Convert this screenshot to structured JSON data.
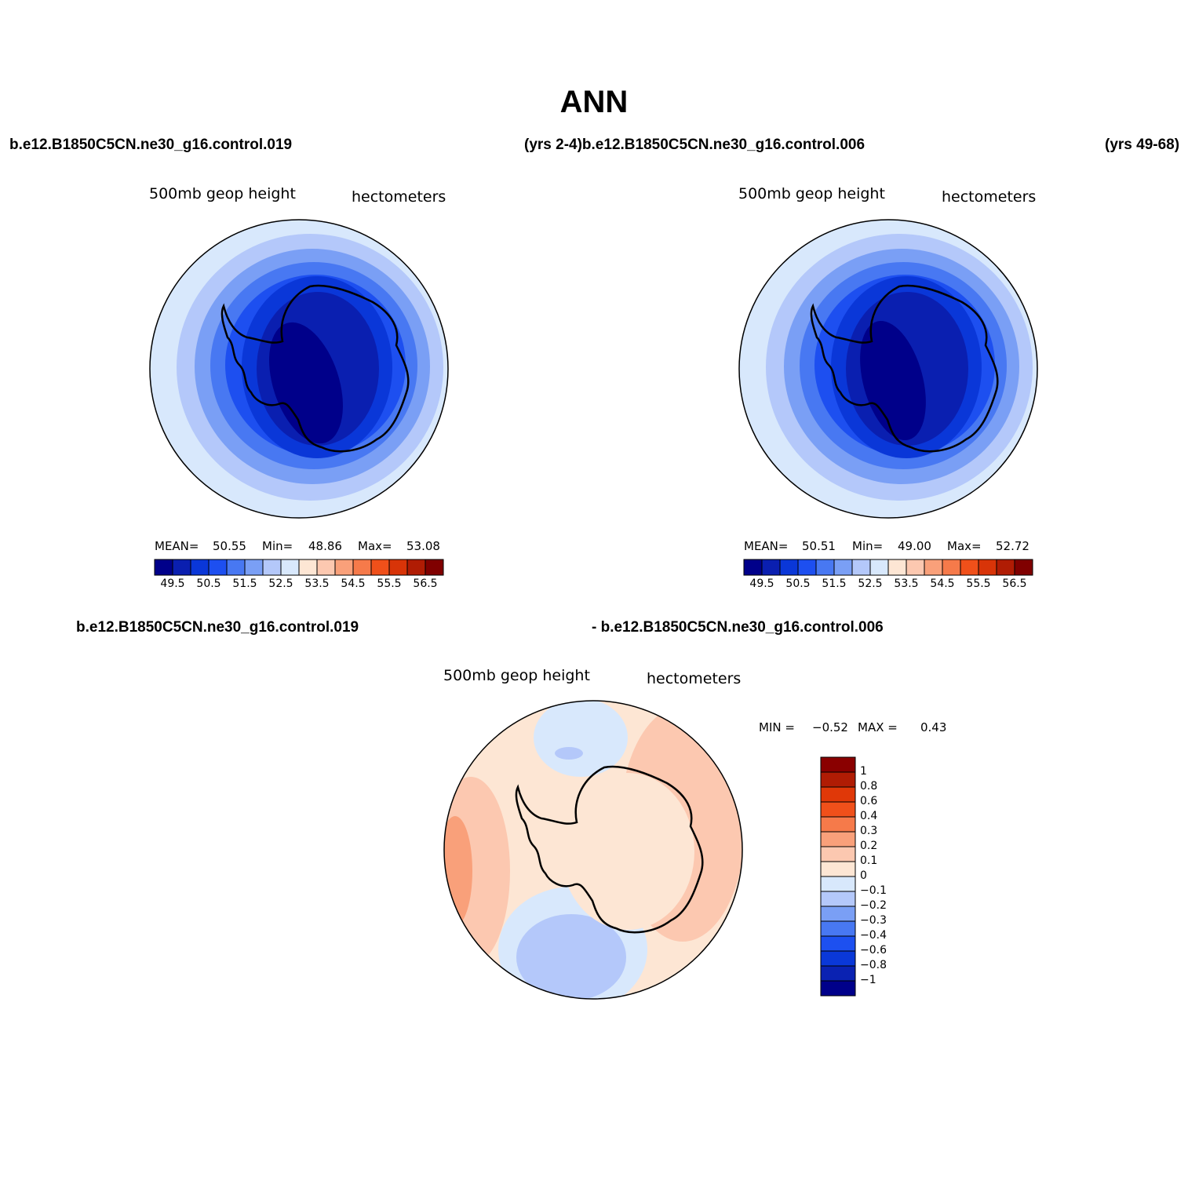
{
  "main_title": "ANN",
  "header": {
    "left_case": "b.e12.B1850C5CN.ne30_g16.control.019",
    "mid_label": "(yrs 2-4)b.e12.B1850C5CN.ne30_g16.control.006",
    "right_label": "(yrs 49-68)"
  },
  "diff_header": {
    "left": "b.e12.B1850C5CN.ne30_g16.control.019",
    "right": "- b.e12.B1850C5CN.ne30_g16.control.006"
  },
  "panels": [
    {
      "variable": "500mb geop height",
      "units": "hectometers",
      "stats": {
        "mean_label": "MEAN=",
        "mean": "50.55",
        "min_label": "Min=",
        "min": "48.86",
        "max_label": "Max=",
        "max": "53.08"
      }
    },
    {
      "variable": "500mb geop height",
      "units": "hectometers",
      "stats": {
        "mean_label": "MEAN=",
        "mean": "50.51",
        "min_label": "Min=",
        "min": "49.00",
        "max_label": "Max=",
        "max": "52.72"
      }
    },
    {
      "variable": "500mb geop height",
      "units": "hectometers",
      "stats": {
        "min_label": "MIN =",
        "min": "−0.52",
        "max_label": "MAX =",
        "max": "0.43"
      }
    }
  ],
  "colorbar_abs": {
    "colors": [
      "#00008a",
      "#0a1fb0",
      "#0a37d8",
      "#1d4ff0",
      "#4878f2",
      "#7a9ff5",
      "#b4c8fa",
      "#d8e8fc",
      "#fde6d4",
      "#fcc8b0",
      "#f9a07a",
      "#f67a4a",
      "#f0501a",
      "#d83408",
      "#b01c04",
      "#800000"
    ],
    "tick_labels": [
      "49.5",
      "50.5",
      "51.5",
      "52.5",
      "53.5",
      "54.5",
      "55.5",
      "56.5"
    ]
  },
  "colorbar_diff": {
    "colors": [
      "#00008a",
      "#0a22b2",
      "#0a38d8",
      "#1d50f0",
      "#4878f2",
      "#7a9ff5",
      "#b4c8fa",
      "#d8e8fc",
      "#fde6d4",
      "#fcc8b0",
      "#f9a07a",
      "#f67a4a",
      "#f0501a",
      "#e03808",
      "#b01c04",
      "#8a0000"
    ],
    "tick_labels": [
      "−1",
      "−0.8",
      "−0.6",
      "−0.4",
      "−0.3",
      "−0.2",
      "−0.1",
      "0",
      "0.1",
      "0.2",
      "0.3",
      "0.4",
      "0.6",
      "0.8",
      "1"
    ]
  },
  "map_fill_colors": {
    "abs_rings": [
      "#d8e8fc",
      "#b4c8fa",
      "#7a9ff5",
      "#4878f2",
      "#1d4ff0",
      "#0a37d8",
      "#0a1fb0",
      "#00008a"
    ],
    "diff": {
      "pos_light": "#fde6d4",
      "pos_mid": "#fcc8b0",
      "pos_strong": "#f9a07a",
      "neg_light": "#d8e8fc",
      "neg_mid": "#b4c8fa",
      "neg_strong": "#7a9ff5"
    }
  },
  "map_projection": "south-polar-stereographic",
  "region": "Antarctica"
}
